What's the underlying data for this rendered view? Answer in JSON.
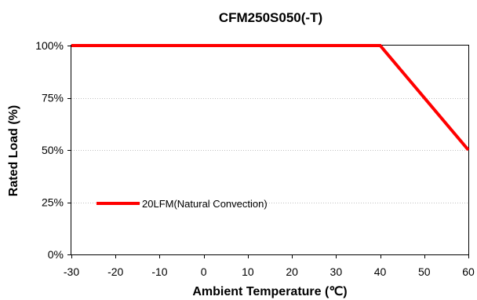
{
  "chart_data": {
    "type": "line",
    "title": "CFM250S050(-T)",
    "xlabel": "Ambient Temperature (℃)",
    "ylabel": "Rated Load  (%)",
    "xlim": [
      -30,
      60
    ],
    "ylim": [
      0,
      100
    ],
    "x_ticks": [
      -30,
      -20,
      -10,
      0,
      10,
      20,
      30,
      40,
      50,
      60
    ],
    "x_tick_labels": [
      "-30",
      "-20",
      "-10",
      "0",
      "10",
      "20",
      "30",
      "40",
      "50",
      "60"
    ],
    "y_ticks": [
      0,
      25,
      50,
      75,
      100
    ],
    "y_tick_labels": [
      "0%",
      "25%",
      "50%",
      "75%",
      "100%"
    ],
    "grid": "horizontal",
    "legend_position": "lower-left",
    "series": [
      {
        "name": "20LFM(Natural Convection)",
        "color": "#ff0000",
        "x": [
          -30,
          40,
          60
        ],
        "y": [
          100,
          100,
          50
        ]
      }
    ]
  }
}
